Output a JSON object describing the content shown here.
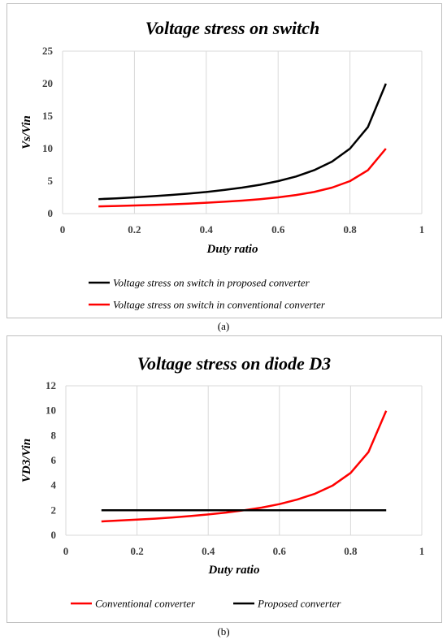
{
  "chart_data": [
    {
      "type": "line",
      "title": "Voltage stress on switch",
      "xlabel": "Duty ratio",
      "ylabel": "Vs/Vin",
      "xlim": [
        0,
        1
      ],
      "ylim": [
        0,
        25
      ],
      "xticks": [
        "0",
        "0.2",
        "0.4",
        "0.6",
        "0.8",
        "1"
      ],
      "yticks": [
        "0",
        "5",
        "10",
        "15",
        "20",
        "25"
      ],
      "grid": "vertical",
      "legend_position": "bottom",
      "series": [
        {
          "name": "Voltage stress on switch in proposed converter",
          "color": "#000000",
          "x": [
            0.1,
            0.15,
            0.2,
            0.25,
            0.3,
            0.35,
            0.4,
            0.45,
            0.5,
            0.55,
            0.6,
            0.65,
            0.7,
            0.75,
            0.8,
            0.85,
            0.9
          ],
          "y": [
            2.22,
            2.35,
            2.5,
            2.67,
            2.86,
            3.08,
            3.33,
            3.64,
            4.0,
            4.44,
            5.0,
            5.71,
            6.67,
            8.0,
            10.0,
            13.33,
            20.0
          ]
        },
        {
          "name": "Voltage stress on switch in conventional converter",
          "color": "#ff0000",
          "x": [
            0.1,
            0.15,
            0.2,
            0.25,
            0.3,
            0.35,
            0.4,
            0.45,
            0.5,
            0.55,
            0.6,
            0.65,
            0.7,
            0.75,
            0.8,
            0.85,
            0.9
          ],
          "y": [
            1.11,
            1.18,
            1.25,
            1.33,
            1.43,
            1.54,
            1.67,
            1.82,
            2.0,
            2.22,
            2.5,
            2.86,
            3.33,
            4.0,
            5.0,
            6.67,
            10.0
          ]
        }
      ]
    },
    {
      "type": "line",
      "title": "Voltage stress on diode D3",
      "xlabel": "Duty ratio",
      "ylabel": "VD3/Vin",
      "xlim": [
        0,
        1
      ],
      "ylim": [
        0,
        12
      ],
      "xticks": [
        "0",
        "0.2",
        "0.4",
        "0.6",
        "0.8",
        "1"
      ],
      "yticks": [
        "0",
        "2",
        "4",
        "6",
        "8",
        "10",
        "12"
      ],
      "grid": "vertical",
      "legend_position": "bottom",
      "series": [
        {
          "name": "Conventional converter",
          "color": "#ff0000",
          "x": [
            0.1,
            0.15,
            0.2,
            0.25,
            0.3,
            0.35,
            0.4,
            0.45,
            0.5,
            0.55,
            0.6,
            0.65,
            0.7,
            0.75,
            0.8,
            0.85,
            0.9
          ],
          "y": [
            1.11,
            1.18,
            1.25,
            1.33,
            1.43,
            1.54,
            1.67,
            1.82,
            2.0,
            2.22,
            2.5,
            2.86,
            3.33,
            4.0,
            5.0,
            6.67,
            10.0
          ]
        },
        {
          "name": "Proposed converter",
          "color": "#000000",
          "x": [
            0.1,
            0.9
          ],
          "y": [
            2,
            2
          ]
        }
      ]
    }
  ],
  "labels": {
    "a": "(a)",
    "b": "(b)"
  }
}
